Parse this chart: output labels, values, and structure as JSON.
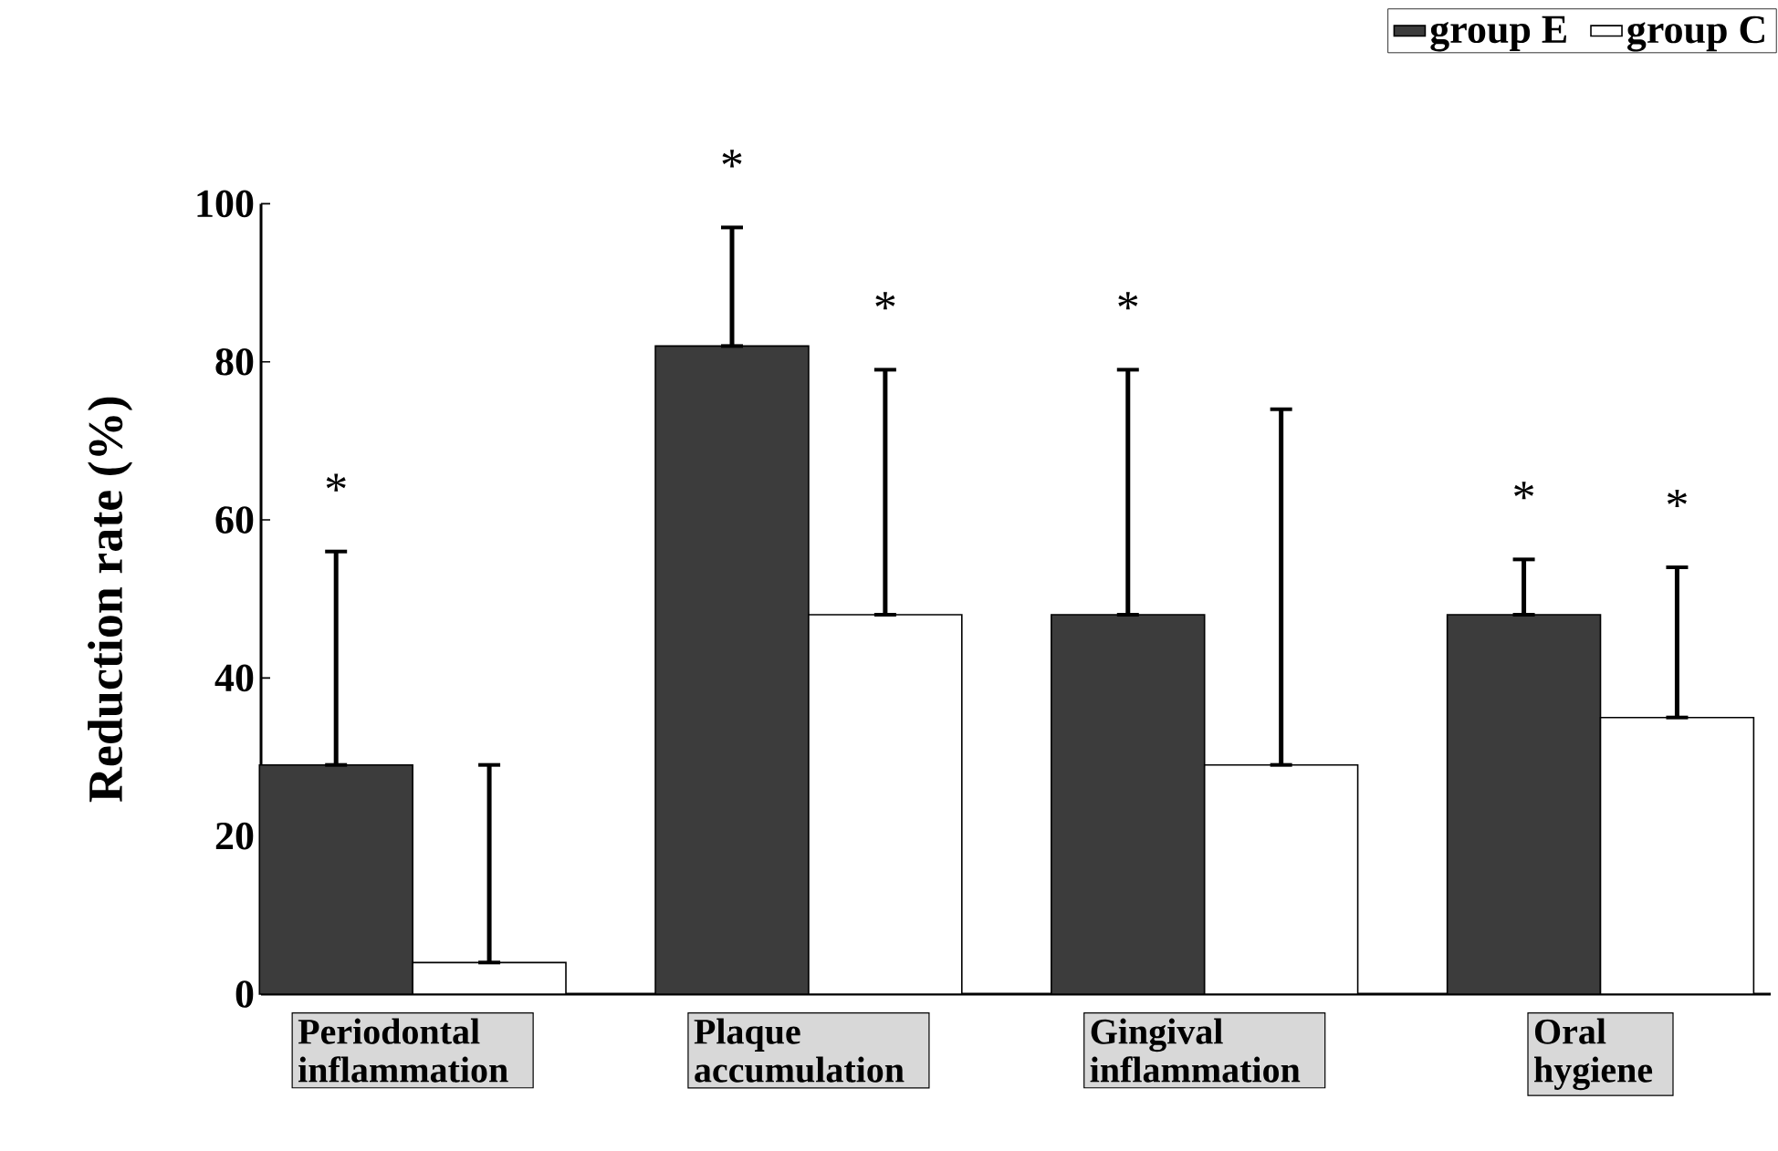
{
  "chart_data": {
    "type": "bar",
    "categories": [
      "Periodontal inflammation",
      "Plaque accumulation",
      "Gingival inflammation",
      "Oral hygiene"
    ],
    "series": [
      {
        "name": "group E",
        "color": "#3c3c3c",
        "values": [
          29,
          82,
          48,
          48
        ],
        "errors": [
          [
            29,
            56
          ],
          [
            82,
            97
          ],
          [
            48,
            79
          ],
          [
            48,
            55
          ]
        ]
      },
      {
        "name": "group C",
        "color": "#ffffff",
        "values": [
          4,
          48,
          29,
          35
        ],
        "errors": [
          [
            4,
            29
          ],
          [
            48,
            79
          ],
          [
            29,
            74
          ],
          [
            35,
            54
          ]
        ]
      }
    ],
    "ylabel": "Reduction rate (%)",
    "ylim": [
      0,
      100
    ],
    "yticks": [
      0,
      20,
      40,
      60,
      80,
      100
    ],
    "legend": "top right",
    "annotations": [
      "*",
      "*",
      "*",
      "*",
      "*",
      "*"
    ]
  }
}
